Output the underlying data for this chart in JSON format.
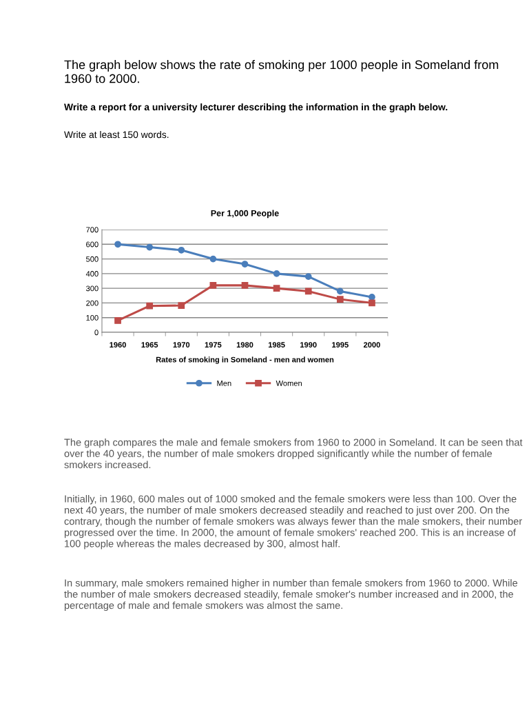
{
  "chart_data": {
    "type": "line",
    "title": "Per 1,000 People",
    "xlabel": "Rates of smoking in Someland - men and women",
    "categories": [
      "1960",
      "1965",
      "1970",
      "1975",
      "1980",
      "1985",
      "1990",
      "1995",
      "2000"
    ],
    "series": [
      {
        "name": "Men",
        "color": "#4a7ebb",
        "marker": "circle",
        "values": [
          600,
          580,
          560,
          500,
          465,
          400,
          380,
          280,
          240
        ]
      },
      {
        "name": "Women",
        "color": "#be4b48",
        "marker": "square",
        "values": [
          80,
          180,
          183,
          320,
          320,
          300,
          280,
          225,
          200
        ]
      }
    ],
    "ylim": [
      0,
      700
    ],
    "yticks": [
      0,
      100,
      200,
      300,
      400,
      500,
      600,
      700
    ],
    "grid": "y",
    "legend": "bottom",
    "line_style": "solid",
    "annotations": [
      "The graph below shows the rate of smoking per 1000 people in Someland from 1960 to 2000.",
      "Write a report for a university lecturer describing the information in the graph below.",
      "Write at least 150 words.",
      "The graph compares the male and female smokers from 1960 to 2000 in Someland. It can be seen that over the 40 years, the number of male smokers dropped significantly while the number of female smokers increased.",
      "Initially, in 1960, 600 males out of 1000 smoked and the female smokers were less than 100. Over the next 40 years, the number of male smokers decreased steadily and reached to just over 200. On the contrary, though the number of female smokers was always fewer than the male smokers, their number progressed over the time. In 2000, the amount of female smokers' reached 200. This is an increase of 100 people whereas the males decreased by 300, almost half.",
      "In summary, male smokers remained higher in number than female smokers from 1960 to 2000. While the number of male smokers decreased steadily, female smoker's number increased and in 2000, the percentage of male and female smokers was almost the same."
    ]
  }
}
